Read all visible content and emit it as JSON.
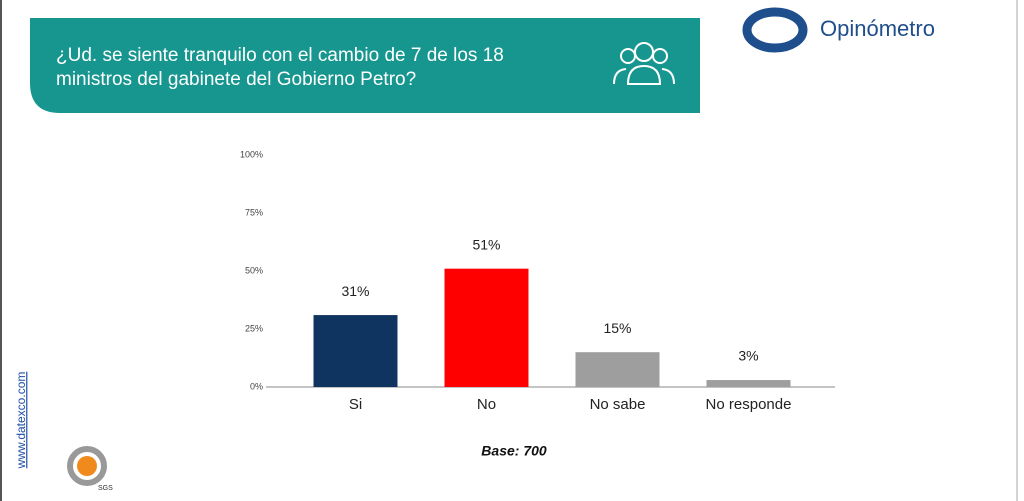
{
  "chart_data": {
    "type": "bar",
    "title": "¿Ud. se siente tranquilo con el cambio de 7 de los 18 ministros del gabinete del Gobierno Petro?",
    "categories": [
      "Si",
      "No",
      "No sabe",
      "No responde"
    ],
    "values": [
      31,
      51,
      15,
      3
    ],
    "value_labels": [
      "31%",
      "51%",
      "15%",
      "3%"
    ],
    "colors": [
      "#0f3460",
      "#ff0000",
      "#9e9e9e",
      "#9e9e9e"
    ],
    "ylim": [
      0,
      100
    ],
    "yticks": [
      {
        "value": 0,
        "label": "0%"
      },
      {
        "value": 25,
        "label": "25%"
      },
      {
        "value": 50,
        "label": "50%"
      },
      {
        "value": 75,
        "label": "75%"
      },
      {
        "value": 100,
        "label": "100%"
      }
    ],
    "note": "Base: 700"
  },
  "brand": "Opinómetro",
  "website": "www.datexco.com",
  "certification": "SGS"
}
